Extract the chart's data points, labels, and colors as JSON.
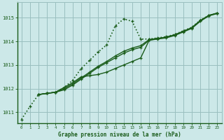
{
  "title": "Graphe pression niveau de la mer (hPa)",
  "bg_color": "#cce8e8",
  "grid_color": "#9abfbf",
  "line_color": "#1a5c1a",
  "xlim": [
    -0.5,
    23.5
  ],
  "ylim": [
    1010.55,
    1015.65
  ],
  "xticks": [
    0,
    1,
    2,
    3,
    4,
    5,
    6,
    7,
    8,
    9,
    10,
    11,
    12,
    13,
    14,
    15,
    16,
    17,
    18,
    19,
    20,
    21,
    22,
    23
  ],
  "yticks": [
    1011,
    1012,
    1013,
    1014,
    1015
  ],
  "lines": [
    {
      "x": [
        0,
        1,
        2,
        3,
        4,
        5,
        6,
        7,
        8,
        9,
        10,
        11,
        12,
        13,
        14,
        15,
        16,
        17,
        18,
        19,
        20,
        21,
        22,
        23
      ],
      "y": [
        1010.7,
        1011.25,
        1011.75,
        1011.8,
        1011.85,
        1012.05,
        1012.35,
        1012.85,
        1013.2,
        1013.55,
        1013.85,
        1014.65,
        1014.95,
        1014.85,
        1014.1,
        1014.1,
        1014.15,
        1014.2,
        1014.3,
        1014.45,
        1014.6,
        1014.9,
        1015.1,
        1015.2
      ],
      "style": ":",
      "marker": "+",
      "lw": 1.2
    },
    {
      "x": [
        2,
        3,
        4,
        5,
        6,
        7,
        8,
        9,
        10,
        11,
        12,
        13,
        14,
        15,
        16,
        17,
        18,
        19,
        20,
        21,
        22,
        23
      ],
      "y": [
        1011.75,
        1011.8,
        1011.85,
        1012.05,
        1012.25,
        1012.5,
        1012.55,
        1012.6,
        1012.7,
        1012.85,
        1013.0,
        1013.15,
        1013.3,
        1014.05,
        1014.12,
        1014.18,
        1014.28,
        1014.42,
        1014.58,
        1014.88,
        1015.1,
        1015.2
      ],
      "style": "-",
      "marker": "+",
      "lw": 1.0
    },
    {
      "x": [
        2,
        3,
        4,
        5,
        6,
        7,
        8,
        9,
        10,
        11,
        12,
        13,
        14,
        15,
        16,
        17,
        18,
        19,
        20,
        21,
        22,
        23
      ],
      "y": [
        1011.75,
        1011.8,
        1011.85,
        1011.95,
        1012.15,
        1012.4,
        1012.65,
        1012.9,
        1013.1,
        1013.3,
        1013.5,
        1013.65,
        1013.75,
        1014.05,
        1014.1,
        1014.15,
        1014.25,
        1014.4,
        1014.55,
        1014.85,
        1015.08,
        1015.18
      ],
      "style": "-",
      "marker": "+",
      "lw": 1.0
    },
    {
      "x": [
        2,
        3,
        4,
        5,
        6,
        7,
        8,
        9,
        10,
        11,
        12,
        13,
        14,
        15,
        16,
        17,
        18,
        19,
        20,
        21,
        22,
        23
      ],
      "y": [
        1011.75,
        1011.8,
        1011.85,
        1012.0,
        1012.2,
        1012.45,
        1012.7,
        1012.95,
        1013.15,
        1013.38,
        1013.58,
        1013.72,
        1013.82,
        1014.08,
        1014.13,
        1014.18,
        1014.28,
        1014.43,
        1014.58,
        1014.88,
        1015.1,
        1015.2
      ],
      "style": "-",
      "marker": "+",
      "lw": 1.0
    }
  ]
}
